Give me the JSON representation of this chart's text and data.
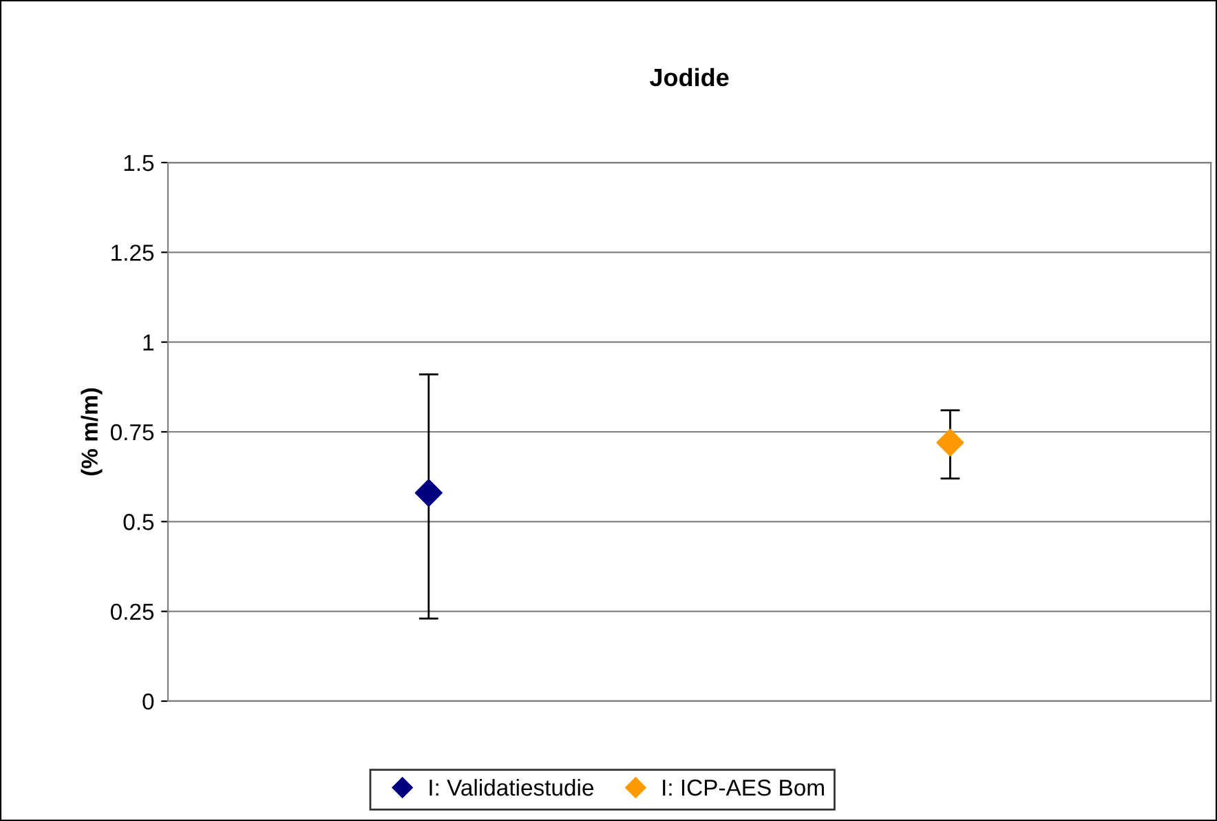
{
  "chart_data": {
    "type": "scatter",
    "title": "Jodide",
    "ylabel": "(% m/m)",
    "categories": [
      null,
      null
    ],
    "series": [
      {
        "name": "I: Validatiestudie",
        "color": "#000080",
        "values": [
          0.58,
          null
        ],
        "errors": [
          [
            0.23,
            0.91
          ],
          null
        ]
      },
      {
        "name": "I: ICP-AES Bom",
        "color": "#ff9900",
        "values": [
          null,
          0.72
        ],
        "errors": [
          null,
          [
            0.62,
            0.81
          ]
        ]
      }
    ],
    "ylim": [
      0,
      1.5
    ],
    "yticks": [
      0,
      0.25,
      0.5,
      0.75,
      1,
      1.25,
      1.5
    ],
    "grid": "y",
    "legend": "bottom",
    "marker": "diamond"
  }
}
